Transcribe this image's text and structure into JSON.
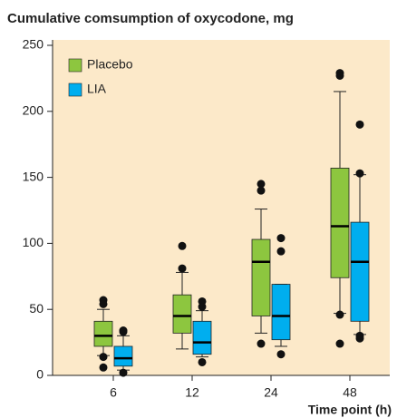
{
  "chart_data": {
    "type": "box",
    "title": "Cumulative comsumption of oxycodone, mg",
    "xlabel": "Time point (h)",
    "categories": [
      "6",
      "12",
      "24",
      "48"
    ],
    "ylim": [
      0,
      250
    ],
    "yticks": [
      0,
      50,
      100,
      150,
      200,
      250
    ],
    "legend": "upper left",
    "series": [
      {
        "name": "Placebo",
        "color": "#8dc63f",
        "boxes": [
          {
            "whislo": 15,
            "q1": 22,
            "med": 30,
            "q3": 41,
            "whishi": 50,
            "fliers": [
              57,
              54,
              14,
              6
            ]
          },
          {
            "whislo": 20,
            "q1": 32,
            "med": 45,
            "q3": 61,
            "whishi": 78,
            "fliers": [
              98,
              81
            ]
          },
          {
            "whislo": 32,
            "q1": 45,
            "med": 86,
            "q3": 103,
            "whishi": 126,
            "fliers": [
              145,
              140,
              24
            ]
          },
          {
            "whislo": 47,
            "q1": 74,
            "med": 113,
            "q3": 157,
            "whishi": 215,
            "fliers": [
              229,
              227,
              46,
              24
            ]
          }
        ]
      },
      {
        "name": "LIA",
        "color": "#00aeef",
        "boxes": [
          {
            "whislo": 4,
            "q1": 7,
            "med": 13,
            "q3": 22,
            "whishi": 30,
            "fliers": [
              34,
              33,
              2
            ]
          },
          {
            "whislo": 14,
            "q1": 16,
            "med": 25,
            "q3": 41,
            "whishi": 49,
            "fliers": [
              56,
              52,
              10
            ]
          },
          {
            "whislo": 22,
            "q1": 27,
            "med": 45,
            "q3": 69,
            "whishi": 69,
            "fliers": [
              104,
              94,
              16
            ]
          },
          {
            "whislo": 31,
            "q1": 41,
            "med": 86,
            "q3": 116,
            "whishi": 152,
            "fliers": [
              190,
              153,
              30,
              28
            ]
          }
        ]
      }
    ]
  }
}
